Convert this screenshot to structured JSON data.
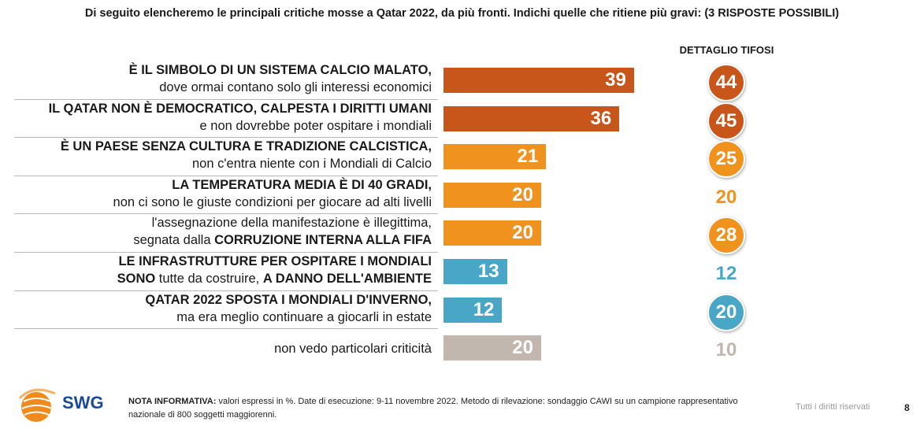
{
  "question": "Di seguito elencheremo le principali critiche mosse a Qatar 2022, da più fronti. Indichi quelle che ritiene più gravi: (3 RISPOSTE POSSIBILI)",
  "detail_header": "DETTAGLIO TIFOSI",
  "chart_data": {
    "type": "bar",
    "orientation": "horizontal",
    "categories": [
      "È IL SIMBOLO DI UN SISTEMA CALCIO MALATO, dove ormai contano solo gli interessi economici",
      "IL QATAR NON È DEMOCRATICO, CALPESTA I DIRITTI UMANI e non dovrebbe poter ospitare i mondiali",
      "È UN PAESE SENZA CULTURA E TRADIZIONE CALCISTICA, non c'entra niente con i Mondiali di Calcio",
      "LA TEMPERATURA MEDIA È DI 40 GRADI, non ci sono le giuste condizioni per giocare ad alti livelli",
      "l'assegnazione della manifestazione è illegittima, segnata dalla CORRUZIONE INTERNA ALLA FIFA",
      "LE INFRASTRUTTURE PER OSPITARE I MONDIALI SONO tutte da costruire, A DANNO DELL'AMBIENTE",
      "QATAR 2022 SPOSTA I MONDIALI D'INVERNO, ma era meglio continuare a giocarli in estate",
      "non vedo particolari criticità"
    ],
    "series": [
      {
        "values": [
          39,
          36,
          21,
          20,
          20,
          13,
          12,
          20
        ]
      },
      {
        "name": "DETTAGLIO TIFOSI",
        "values": [
          44,
          45,
          25,
          20,
          28,
          12,
          20,
          10
        ]
      }
    ],
    "bar_colors": [
      "#c8561b",
      "#c8561b",
      "#f0921e",
      "#f0921e",
      "#f0921e",
      "#4aa6c6",
      "#4aa6c6",
      "#c2b7ae"
    ],
    "tifosi_circle": [
      true,
      true,
      true,
      false,
      true,
      false,
      true,
      false
    ],
    "xlim": [
      0,
      60
    ]
  },
  "rows": [
    {
      "lines": [
        [
          {
            "t": "È IL SIMBOLO DI UN SISTEMA CALCIO MALATO,",
            "b": true
          }
        ],
        [
          {
            "t": "dove ormai contano solo gli interessi economici",
            "b": false
          }
        ]
      ]
    },
    {
      "lines": [
        [
          {
            "t": "IL QATAR NON È DEMOCRATICO, CALPESTA I DIRITTI UMANI",
            "b": true
          }
        ],
        [
          {
            "t": "e non dovrebbe poter ospitare i mondiali",
            "b": false
          }
        ]
      ]
    },
    {
      "lines": [
        [
          {
            "t": "È UN PAESE SENZA CULTURA E TRADIZIONE CALCISTICA,",
            "b": true
          }
        ],
        [
          {
            "t": "non c'entra niente con i Mondiali di Calcio",
            "b": false
          }
        ]
      ]
    },
    {
      "lines": [
        [
          {
            "t": "LA TEMPERATURA MEDIA È DI 40 GRADI,",
            "b": true
          }
        ],
        [
          {
            "t": "non ci sono le giuste condizioni per giocare ad alti livelli",
            "b": false
          }
        ]
      ]
    },
    {
      "lines": [
        [
          {
            "t": "l'assegnazione della manifestazione è illegittima,",
            "b": false
          }
        ],
        [
          {
            "t": "segnata dalla ",
            "b": false
          },
          {
            "t": "CORRUZIONE INTERNA ALLA FIFA",
            "b": true
          }
        ]
      ]
    },
    {
      "lines": [
        [
          {
            "t": "LE INFRASTRUTTURE PER OSPITARE I MONDIALI",
            "b": true
          }
        ],
        [
          {
            "t": "SONO",
            "b": true
          },
          {
            "t": " tutte da costruire, ",
            "b": false
          },
          {
            "t": "A DANNO DELL'AMBIENTE",
            "b": true
          }
        ]
      ]
    },
    {
      "lines": [
        [
          {
            "t": "QATAR 2022 SPOSTA I MONDIALI D'INVERNO,",
            "b": true
          }
        ],
        [
          {
            "t": "ma era meglio continuare a giocarli in estate",
            "b": false
          }
        ]
      ]
    },
    {
      "lines": [
        [
          {
            "t": "non vedo particolari criticità",
            "b": false
          }
        ]
      ]
    }
  ],
  "footer": {
    "note_label": "NOTA INFORMATIVA:",
    "note_text": " valori espressi in %. Date di esecuzione: 9-11 novembre 2022. Metodo di rilevazione: sondaggio CAWI su un campione rappresentativo nazionale di 800 soggetti maggiorenni.",
    "rights": "Tutti i diritti riservati",
    "page": "8"
  },
  "logo": {
    "text": "SWG",
    "colors": [
      "#f08a1c",
      "#1a4a96"
    ]
  }
}
